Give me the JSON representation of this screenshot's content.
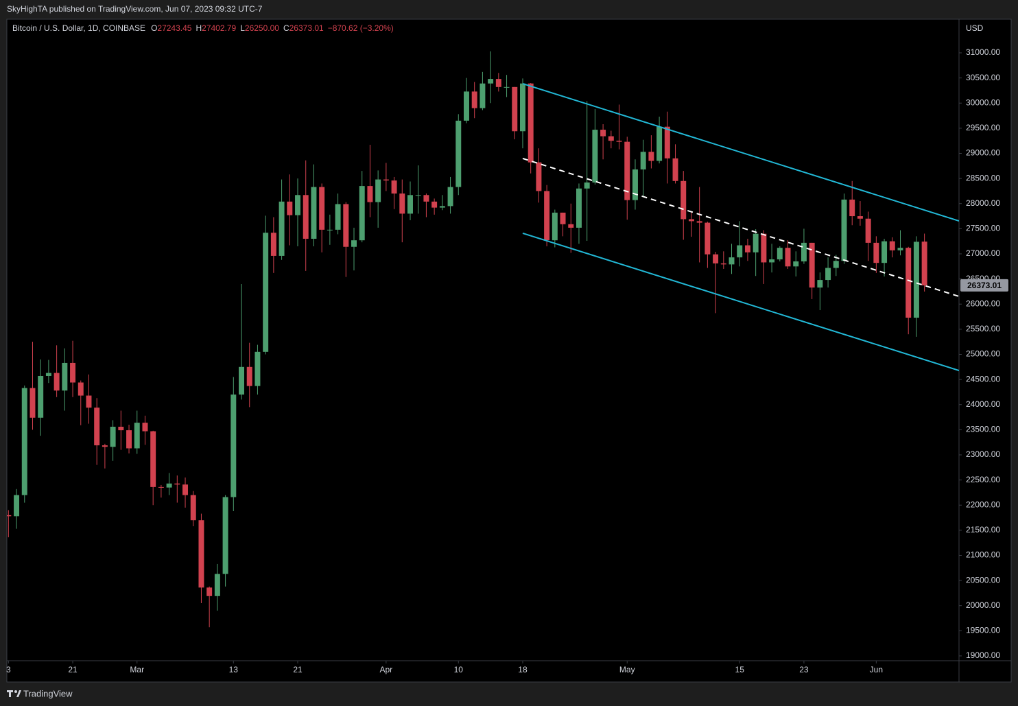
{
  "header": {
    "published": "SkyHighTA published on TradingView.com, Jun 07, 2023 09:32 UTC-7",
    "footer": "TradingView"
  },
  "chart_data": {
    "type": "candlestick",
    "legend": {
      "symbol": "Bitcoin / U.S. Dollar, 1D, COINBASE",
      "open_label": "O",
      "open": "27243.45",
      "high_label": "H",
      "high": "27402.79",
      "low_label": "L",
      "low": "26250.00",
      "close_label": "C",
      "close": "26373.01",
      "change": "−870.62 (−3.20%)"
    },
    "currency": "USD",
    "up_color": "#4d9f6f",
    "down_color": "#d2424f",
    "grid": false,
    "xlim": [
      -0.2,
      118.3
    ],
    "xticks": [
      {
        "value": 0,
        "label": "3"
      },
      {
        "value": 8,
        "label": "21"
      },
      {
        "value": 16,
        "label": "Mar"
      },
      {
        "value": 28,
        "label": "13"
      },
      {
        "value": 36,
        "label": "21"
      },
      {
        "value": 47,
        "label": "Apr"
      },
      {
        "value": 56,
        "label": "10"
      },
      {
        "value": 64,
        "label": "18"
      },
      {
        "value": 77,
        "label": "May"
      },
      {
        "value": 91,
        "label": "15"
      },
      {
        "value": 99,
        "label": "23"
      },
      {
        "value": 108,
        "label": "Jun"
      }
    ],
    "ylim": [
      18904,
      31669
    ],
    "yticks": [
      {
        "value": 31000,
        "label": "31000.00"
      },
      {
        "value": 30500,
        "label": "30500.00"
      },
      {
        "value": 30000,
        "label": "30000.00"
      },
      {
        "value": 29500,
        "label": "29500.00"
      },
      {
        "value": 29000,
        "label": "29000.00"
      },
      {
        "value": 28500,
        "label": "28500.00"
      },
      {
        "value": 28000,
        "label": "28000.00"
      },
      {
        "value": 27500,
        "label": "27500.00"
      },
      {
        "value": 27000,
        "label": "27000.00"
      },
      {
        "value": 26500,
        "label": "26500.00"
      },
      {
        "value": 26000,
        "label": "26000.00"
      },
      {
        "value": 25500,
        "label": "25500.00"
      },
      {
        "value": 25000,
        "label": "25000.00"
      },
      {
        "value": 24500,
        "label": "24500.00"
      },
      {
        "value": 24000,
        "label": "24000.00"
      },
      {
        "value": 23500,
        "label": "23500.00"
      },
      {
        "value": 23000,
        "label": "23000.00"
      },
      {
        "value": 22500,
        "label": "22500.00"
      },
      {
        "value": 22000,
        "label": "22000.00"
      },
      {
        "value": 21500,
        "label": "21500.00"
      },
      {
        "value": 21000,
        "label": "21000.00"
      },
      {
        "value": 20500,
        "label": "20500.00"
      },
      {
        "value": 20000,
        "label": "20000.00"
      },
      {
        "value": 19500,
        "label": "19500.00"
      },
      {
        "value": 19000,
        "label": "19000.00"
      }
    ],
    "trendlines": [
      {
        "color": "#22b8d6",
        "dashed": false,
        "points": [
          [
            64,
            30386
          ],
          [
            118.3,
            27655
          ]
        ]
      },
      {
        "color": "#22b8d6",
        "dashed": false,
        "points": [
          [
            64,
            27410
          ],
          [
            118.3,
            24679
          ]
        ]
      },
      {
        "color": "#ffffff",
        "dashed": true,
        "points": [
          [
            64,
            28898
          ],
          [
            118.3,
            26153
          ]
        ]
      }
    ],
    "ohlc": [
      [
        21800,
        21900,
        21360,
        21780
      ],
      [
        21780,
        22320,
        21530,
        22200
      ],
      [
        22200,
        24380,
        22050,
        24330
      ],
      [
        24330,
        25250,
        23500,
        23740
      ],
      [
        23740,
        24900,
        23380,
        24570
      ],
      [
        24570,
        24890,
        24430,
        24630
      ],
      [
        24630,
        25180,
        24150,
        24280
      ],
      [
        24280,
        25120,
        23880,
        24830
      ],
      [
        24830,
        25270,
        24150,
        24440
      ],
      [
        24440,
        24480,
        23590,
        24180
      ],
      [
        24180,
        24600,
        23620,
        23940
      ],
      [
        23940,
        24130,
        22800,
        23190
      ],
      [
        23190,
        23220,
        22730,
        23160
      ],
      [
        23160,
        23690,
        22880,
        23560
      ],
      [
        23560,
        23880,
        23100,
        23490
      ],
      [
        23490,
        23600,
        23030,
        23130
      ],
      [
        23130,
        23880,
        23020,
        23640
      ],
      [
        23640,
        23780,
        23200,
        23470
      ],
      [
        23470,
        23480,
        22000,
        22360
      ],
      [
        22360,
        22400,
        22150,
        22350
      ],
      [
        22350,
        22640,
        22200,
        22430
      ],
      [
        22430,
        22590,
        22050,
        22410
      ],
      [
        22410,
        22550,
        21950,
        22200
      ],
      [
        22200,
        22280,
        21580,
        21700
      ],
      [
        21700,
        21830,
        20050,
        20360
      ],
      [
        20360,
        20380,
        19570,
        20190
      ],
      [
        20190,
        20830,
        19900,
        20630
      ],
      [
        20630,
        22200,
        20380,
        22160
      ],
      [
        22160,
        24550,
        21880,
        24200
      ],
      [
        24200,
        26400,
        24100,
        24750
      ],
      [
        24750,
        25230,
        23950,
        24370
      ],
      [
        24370,
        25190,
        24200,
        25050
      ],
      [
        25050,
        27760,
        25000,
        27420
      ],
      [
        27420,
        27730,
        26620,
        26960
      ],
      [
        26960,
        28480,
        26880,
        28040
      ],
      [
        28040,
        28580,
        27170,
        27770
      ],
      [
        27770,
        28500,
        27150,
        28170
      ],
      [
        28170,
        28860,
        26660,
        27300
      ],
      [
        27300,
        28780,
        27150,
        28330
      ],
      [
        28330,
        28400,
        27030,
        27480
      ],
      [
        27480,
        27780,
        27180,
        27480
      ],
      [
        27480,
        28200,
        27390,
        27990
      ],
      [
        27990,
        28030,
        26540,
        27140
      ],
      [
        27140,
        27520,
        26670,
        27270
      ],
      [
        27270,
        28650,
        27230,
        28350
      ],
      [
        28350,
        29170,
        27730,
        28030
      ],
      [
        28030,
        28660,
        27520,
        28480
      ],
      [
        28480,
        28810,
        28250,
        28460
      ],
      [
        28460,
        28530,
        27890,
        28200
      ],
      [
        28200,
        28480,
        27230,
        27800
      ],
      [
        27800,
        28440,
        27670,
        28170
      ],
      [
        28170,
        28760,
        27800,
        28170
      ],
      [
        28170,
        28200,
        27730,
        28040
      ],
      [
        28040,
        28100,
        27780,
        27920
      ],
      [
        27920,
        28170,
        27870,
        27950
      ],
      [
        27950,
        28530,
        27800,
        28330
      ],
      [
        28330,
        29780,
        28170,
        29650
      ],
      [
        29650,
        30500,
        29600,
        30230
      ],
      [
        30230,
        30420,
        29700,
        29900
      ],
      [
        29900,
        30620,
        29860,
        30390
      ],
      [
        30390,
        31030,
        30000,
        30480
      ],
      [
        30480,
        30600,
        30230,
        30320
      ],
      [
        30320,
        30560,
        30120,
        30320
      ],
      [
        30320,
        30320,
        29280,
        29440
      ],
      [
        29440,
        30490,
        29100,
        30390
      ],
      [
        30390,
        30400,
        28600,
        28820
      ],
      [
        28820,
        29100,
        28020,
        28250
      ],
      [
        28250,
        28370,
        27150,
        27270
      ],
      [
        27270,
        27880,
        27130,
        27820
      ],
      [
        27820,
        27820,
        27350,
        27590
      ],
      [
        27590,
        28000,
        27020,
        27520
      ],
      [
        27520,
        28400,
        27200,
        28300
      ],
      [
        28300,
        30040,
        27260,
        28420
      ],
      [
        28420,
        29880,
        28380,
        29470
      ],
      [
        29470,
        29580,
        28880,
        29340
      ],
      [
        29340,
        29450,
        29100,
        29250
      ],
      [
        29250,
        29970,
        29080,
        29230
      ],
      [
        29230,
        29330,
        27680,
        28070
      ],
      [
        28070,
        28880,
        27880,
        28680
      ],
      [
        28680,
        29270,
        28140,
        29030
      ],
      [
        29030,
        29360,
        28700,
        28850
      ],
      [
        28850,
        29730,
        28800,
        29530
      ],
      [
        29530,
        29830,
        28400,
        28900
      ],
      [
        28900,
        29180,
        28400,
        28450
      ],
      [
        28450,
        28650,
        27280,
        27690
      ],
      [
        27690,
        27830,
        27340,
        27650
      ],
      [
        27650,
        28330,
        26830,
        27620
      ],
      [
        27620,
        27640,
        26720,
        26990
      ],
      [
        26990,
        27040,
        25820,
        26810
      ],
      [
        26810,
        27050,
        26700,
        26790
      ],
      [
        26790,
        27200,
        26600,
        26930
      ],
      [
        26930,
        27650,
        26750,
        27170
      ],
      [
        27170,
        27300,
        26860,
        27030
      ],
      [
        27030,
        27490,
        26560,
        27400
      ],
      [
        27400,
        27470,
        26400,
        26830
      ],
      [
        26830,
        27200,
        26630,
        26890
      ],
      [
        26890,
        27150,
        26850,
        27120
      ],
      [
        27120,
        27270,
        26700,
        26750
      ],
      [
        26750,
        27050,
        26550,
        26850
      ],
      [
        26850,
        27500,
        26800,
        27220
      ],
      [
        27220,
        27220,
        26100,
        26330
      ],
      [
        26330,
        26630,
        25880,
        26480
      ],
      [
        26480,
        26930,
        26330,
        26720
      ],
      [
        26720,
        26980,
        26560,
        26860
      ],
      [
        26860,
        28200,
        26800,
        28080
      ],
      [
        28080,
        28450,
        27570,
        27750
      ],
      [
        27750,
        28050,
        27560,
        27700
      ],
      [
        27700,
        27840,
        26860,
        27220
      ],
      [
        27220,
        27350,
        26620,
        26820
      ],
      [
        26820,
        27300,
        26550,
        27250
      ],
      [
        27250,
        27330,
        26930,
        27070
      ],
      [
        27070,
        27470,
        26970,
        27120
      ],
      [
        27120,
        27140,
        25400,
        25730
      ],
      [
        25730,
        27350,
        25350,
        27240
      ],
      [
        27243.45,
        27402.79,
        26250,
        26373.01
      ]
    ]
  }
}
